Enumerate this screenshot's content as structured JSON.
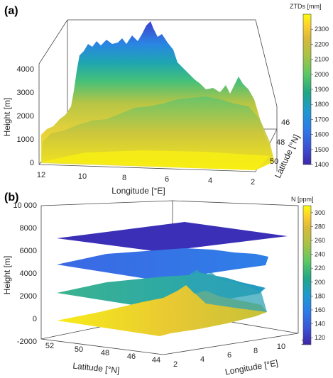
{
  "chart_data": [
    {
      "panel_label": "(a)",
      "type": "surface3d",
      "xlabel": "Longitude [°E]",
      "ylabel": "Latitude [°N]",
      "zlabel": "Height [m]",
      "x_ticks": [
        "12",
        "10",
        "8",
        "6",
        "4",
        "2"
      ],
      "y_ticks": [
        "46",
        "48",
        "50"
      ],
      "z_ticks": [
        "0",
        "1000",
        "2000",
        "3000",
        "4000"
      ],
      "xlim": [
        2,
        12
      ],
      "ylim": [
        45,
        51
      ],
      "zlim": [
        0,
        4500
      ],
      "colorbar": {
        "title": "ZTDs [mm]",
        "range": [
          1400,
          2400
        ],
        "ticks": [
          "2300",
          "2200",
          "2100",
          "2000",
          "1900",
          "1800",
          "1700",
          "1600",
          "1500",
          "1400"
        ],
        "colors": [
          "#f9fb0e",
          "#fcce2e",
          "#d9b93a",
          "#a6c346",
          "#5cc863",
          "#21a784",
          "#1f9acf",
          "#2d7ce8",
          "#3b55d6",
          "#3e26a8"
        ]
      }
    },
    {
      "panel_label": "(b)",
      "type": "surface3d",
      "xlabel": "Longitude [°E]",
      "ylabel": "Latitude [°N]",
      "zlabel": "Height [m]",
      "x_ticks": [
        "2",
        "4",
        "6",
        "8",
        "10",
        "12"
      ],
      "y_ticks": [
        "52",
        "50",
        "48",
        "46",
        "44"
      ],
      "z_ticks": [
        "-2000",
        "0",
        "2000",
        "4000",
        "6000",
        "8000",
        "10 000"
      ],
      "xlim": [
        2,
        12
      ],
      "ylim": [
        44,
        52
      ],
      "zlim": [
        -2000,
        10000
      ],
      "layers_height_m": [
        8000,
        5500,
        2800,
        0
      ],
      "colorbar": {
        "title": "N [ppm]",
        "range": [
          110,
          310
        ],
        "ticks": [
          "300",
          "280",
          "260",
          "240",
          "220",
          "200",
          "180",
          "160",
          "140",
          "120"
        ],
        "colors": [
          "#f9fb0e",
          "#fcce2e",
          "#d9b93a",
          "#a6c346",
          "#5cc863",
          "#21a784",
          "#1f9acf",
          "#2d7ce8",
          "#3b55d6",
          "#3e26a8"
        ]
      }
    }
  ]
}
